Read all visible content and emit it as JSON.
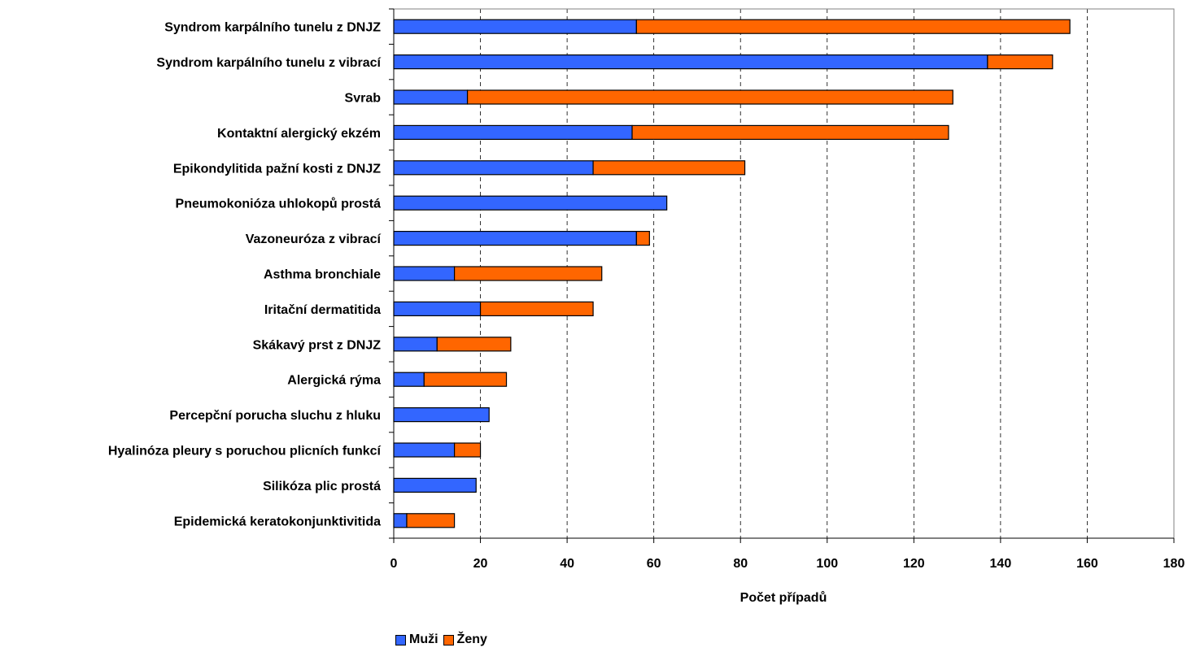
{
  "chart_data": {
    "type": "bar",
    "orientation": "horizontal",
    "stacked": true,
    "title": "",
    "xlabel": "Počet případů",
    "ylabel": "",
    "xlim": [
      0,
      180
    ],
    "x_ticks": [
      0,
      20,
      40,
      60,
      80,
      100,
      120,
      140,
      160,
      180
    ],
    "grid": "vertical dashed",
    "legend_position": "bottom",
    "categories": [
      "Syndrom karpálního tunelu z DNJZ",
      "Syndrom karpálního tunelu z vibrací",
      "Svrab",
      "Kontaktní alergický ekzém",
      "Epikondylitida pažní kosti z DNJZ",
      "Pneumokonióza uhlokopů prostá",
      "Vazoneuróza z vibrací",
      "Asthma bronchiale",
      "Iritační dermatitida",
      "Skákavý prst z DNJZ",
      "Alergická rýma",
      "Percepční porucha sluchu z hluku",
      "Hyalinóza pleury s poruchou plicních funkcí",
      "Silikóza plic prostá",
      "Epidemická keratokonjunktivitida"
    ],
    "series": [
      {
        "name": "Muži",
        "color": "#3366FF",
        "values": [
          56,
          137,
          17,
          55,
          46,
          63,
          56,
          14,
          20,
          10,
          7,
          22,
          14,
          19,
          3
        ]
      },
      {
        "name": "Ženy",
        "color": "#FF6600",
        "values": [
          100,
          15,
          112,
          73,
          35,
          0,
          3,
          34,
          26,
          17,
          19,
          0,
          6,
          0,
          11
        ]
      }
    ]
  }
}
